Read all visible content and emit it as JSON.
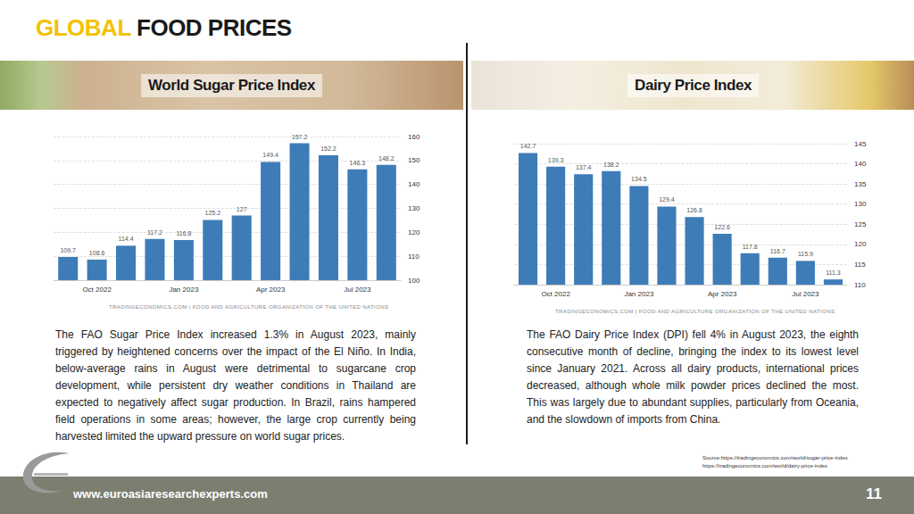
{
  "header": {
    "accent": "GLOBAL",
    "rest": "FOOD PRICES"
  },
  "chart_data": [
    {
      "type": "bar",
      "title": "World Sugar Price Index",
      "categories": [
        null,
        "Oct 2022",
        null,
        null,
        "Jan 2023",
        null,
        null,
        "Apr 2023",
        null,
        null,
        "Jul 2023",
        null
      ],
      "values": [
        109.7,
        108.6,
        114.4,
        117.2,
        116.8,
        125.2,
        127,
        149.4,
        157.2,
        152.2,
        146.3,
        148.2
      ],
      "color": "#3e7cb8",
      "ylim": [
        100,
        160
      ],
      "yticks": [
        100,
        110,
        120,
        130,
        140,
        150,
        160
      ],
      "grid": true,
      "data_labels": true
    },
    {
      "type": "bar",
      "title": "Dairy Price Index",
      "categories": [
        null,
        "Oct 2022",
        null,
        null,
        "Jan 2023",
        null,
        null,
        "Apr 2023",
        null,
        null,
        "Jul 2023",
        null
      ],
      "values": [
        142.7,
        139.3,
        137.4,
        138.2,
        134.5,
        129.4,
        126.8,
        122.6,
        117.8,
        116.7,
        115.9,
        111.3
      ],
      "color": "#3e7cb8",
      "ylim": [
        110,
        145
      ],
      "yticks": [
        110,
        115,
        120,
        125,
        130,
        135,
        140,
        145
      ],
      "grid": true,
      "data_labels": true
    }
  ],
  "panels": [
    {
      "credit": "TRADINGECONOMICS.COM | FOOD AND AGRICULTURE ORGANIZATION OF THE UNITED NATIONS",
      "text": "The FAO Sugar Price Index increased 1.3% in August 2023, mainly triggered by heightened concerns over the impact of the El Niño. In India, below-average rains in August were detrimental to sugarcane crop development, while persistent dry weather conditions in Thailand are expected to negatively affect sugar production. In Brazil, rains hampered field operations in some areas; however, the large crop currently being harvested limited the upward pressure on world sugar prices."
    },
    {
      "credit": "TRADINGECONOMICS.COM | FOOD AND AGRICULTURE ORGANIZATION OF THE UNITED NATIONS",
      "text": "The FAO Dairy Price Index (DPI) fell 4% in August 2023, the eighth consecutive month of decline, bringing the index to its lowest level since January 2021. Across all dairy products, international prices decreased, although whole milk powder prices declined the most. This was largely due to abundant supplies, particularly from Oceania, and the slowdown of imports from China."
    }
  ],
  "sources": [
    "Source:https://tradingeconomics.com/world/sugar-price-index",
    "https://tradingeconomics.com/world/dairy-price-index"
  ],
  "footer": {
    "url": "www.euroasiaresearchexperts.com",
    "page": "11"
  }
}
